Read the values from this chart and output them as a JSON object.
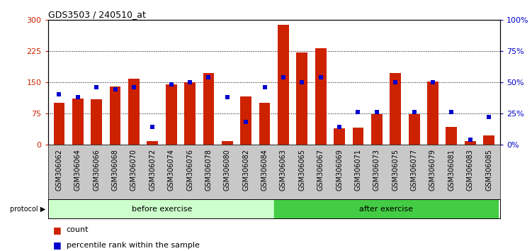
{
  "title": "GDS3503 / 240510_at",
  "samples": [
    "GSM306062",
    "GSM306064",
    "GSM306066",
    "GSM306068",
    "GSM306070",
    "GSM306072",
    "GSM306074",
    "GSM306076",
    "GSM306078",
    "GSM306080",
    "GSM306082",
    "GSM306084",
    "GSM306063",
    "GSM306065",
    "GSM306067",
    "GSM306069",
    "GSM306071",
    "GSM306073",
    "GSM306075",
    "GSM306077",
    "GSM306079",
    "GSM306081",
    "GSM306083",
    "GSM306085"
  ],
  "count_values": [
    100,
    110,
    108,
    140,
    158,
    8,
    145,
    150,
    172,
    8,
    115,
    100,
    288,
    222,
    232,
    38,
    40,
    72,
    172,
    72,
    152,
    42,
    8,
    22
  ],
  "percentile_values": [
    40,
    38,
    46,
    44,
    46,
    14,
    48,
    50,
    54,
    38,
    18,
    46,
    54,
    50,
    54,
    14,
    26,
    26,
    50,
    26,
    50,
    26,
    4,
    22
  ],
  "before_count": 12,
  "after_count": 12,
  "bar_color": "#cc2200",
  "dot_color": "#0000cc",
  "before_color": "#ccffcc",
  "after_color": "#44cc44",
  "xtick_bg_color": "#c8c8c8",
  "left_ylim": [
    0,
    300
  ],
  "right_ylim": [
    0,
    100
  ],
  "left_yticks": [
    0,
    75,
    150,
    225,
    300
  ],
  "right_yticks": [
    0,
    25,
    50,
    75,
    100
  ],
  "right_yticklabels": [
    "0%",
    "25%",
    "50%",
    "75%",
    "100%"
  ],
  "grid_lines": [
    75,
    150,
    225
  ],
  "background_color": "#ffffff"
}
